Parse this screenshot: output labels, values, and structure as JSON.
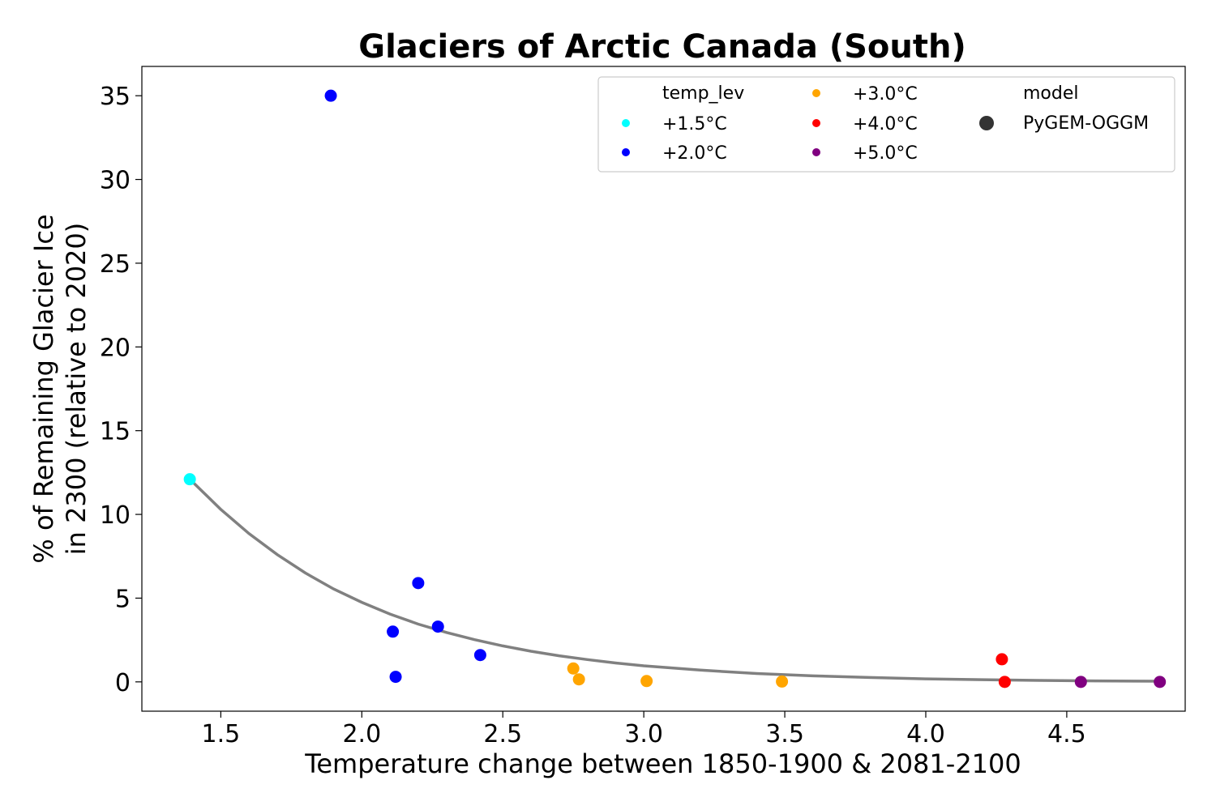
{
  "chart_data": {
    "type": "scatter",
    "title": "Glaciers of Arctic Canada (South)",
    "xlabel": "Temperature change between 1850-1900 & 2081-2100",
    "ylabel_line1": "% of Remaining Glacier Ice",
    "ylabel_line2": "in 2300 (relative to 2020)",
    "xlim": [
      1.22,
      4.92
    ],
    "ylim": [
      -1.75,
      36.75
    ],
    "xticks": [
      1.5,
      2.0,
      2.5,
      3.0,
      3.5,
      4.0,
      4.5
    ],
    "xtick_labels": [
      "1.5",
      "2.0",
      "2.5",
      "3.0",
      "3.5",
      "4.0",
      "4.5"
    ],
    "yticks": [
      0,
      5,
      10,
      15,
      20,
      25,
      30,
      35
    ],
    "ytick_labels": [
      "0",
      "5",
      "10",
      "15",
      "20",
      "25",
      "30",
      "35"
    ],
    "series": [
      {
        "name": "+1.5°C",
        "color": "#00ffff",
        "points": [
          [
            1.39,
            12.1
          ]
        ]
      },
      {
        "name": "+2.0°C",
        "color": "#0000ff",
        "points": [
          [
            1.89,
            35.0
          ],
          [
            2.11,
            3.0
          ],
          [
            2.12,
            0.3
          ],
          [
            2.2,
            5.9
          ],
          [
            2.27,
            3.3
          ],
          [
            2.42,
            1.6
          ]
        ]
      },
      {
        "name": "+3.0°C",
        "color": "#ffa500",
        "points": [
          [
            2.75,
            0.8
          ],
          [
            2.77,
            0.15
          ],
          [
            3.01,
            0.05
          ],
          [
            3.49,
            0.02
          ]
        ]
      },
      {
        "name": "+4.0°C",
        "color": "#ff0000",
        "points": [
          [
            4.27,
            1.35
          ],
          [
            4.28,
            0.0
          ]
        ]
      },
      {
        "name": "+5.0°C",
        "color": "#800080",
        "points": [
          [
            4.55,
            0.0
          ],
          [
            4.83,
            0.0
          ]
        ]
      }
    ],
    "fit_curve": {
      "color": "#808080",
      "x": [
        1.39,
        1.5,
        1.6,
        1.7,
        1.8,
        1.9,
        2.0,
        2.1,
        2.2,
        2.3,
        2.4,
        2.5,
        2.6,
        2.7,
        2.8,
        2.9,
        3.0,
        3.2,
        3.4,
        3.6,
        3.8,
        4.0,
        4.2,
        4.4,
        4.6,
        4.83
      ],
      "y": [
        12.1,
        10.3,
        8.85,
        7.6,
        6.5,
        5.55,
        4.75,
        4.05,
        3.45,
        2.95,
        2.52,
        2.15,
        1.83,
        1.56,
        1.33,
        1.13,
        0.96,
        0.7,
        0.5,
        0.36,
        0.26,
        0.18,
        0.13,
        0.09,
        0.06,
        0.04
      ]
    },
    "legend": {
      "position": "top-right",
      "temp_header": "temp_lev",
      "model_header": "model",
      "model_name": "PyGEM-OGGM",
      "model_color": "#333333"
    }
  }
}
